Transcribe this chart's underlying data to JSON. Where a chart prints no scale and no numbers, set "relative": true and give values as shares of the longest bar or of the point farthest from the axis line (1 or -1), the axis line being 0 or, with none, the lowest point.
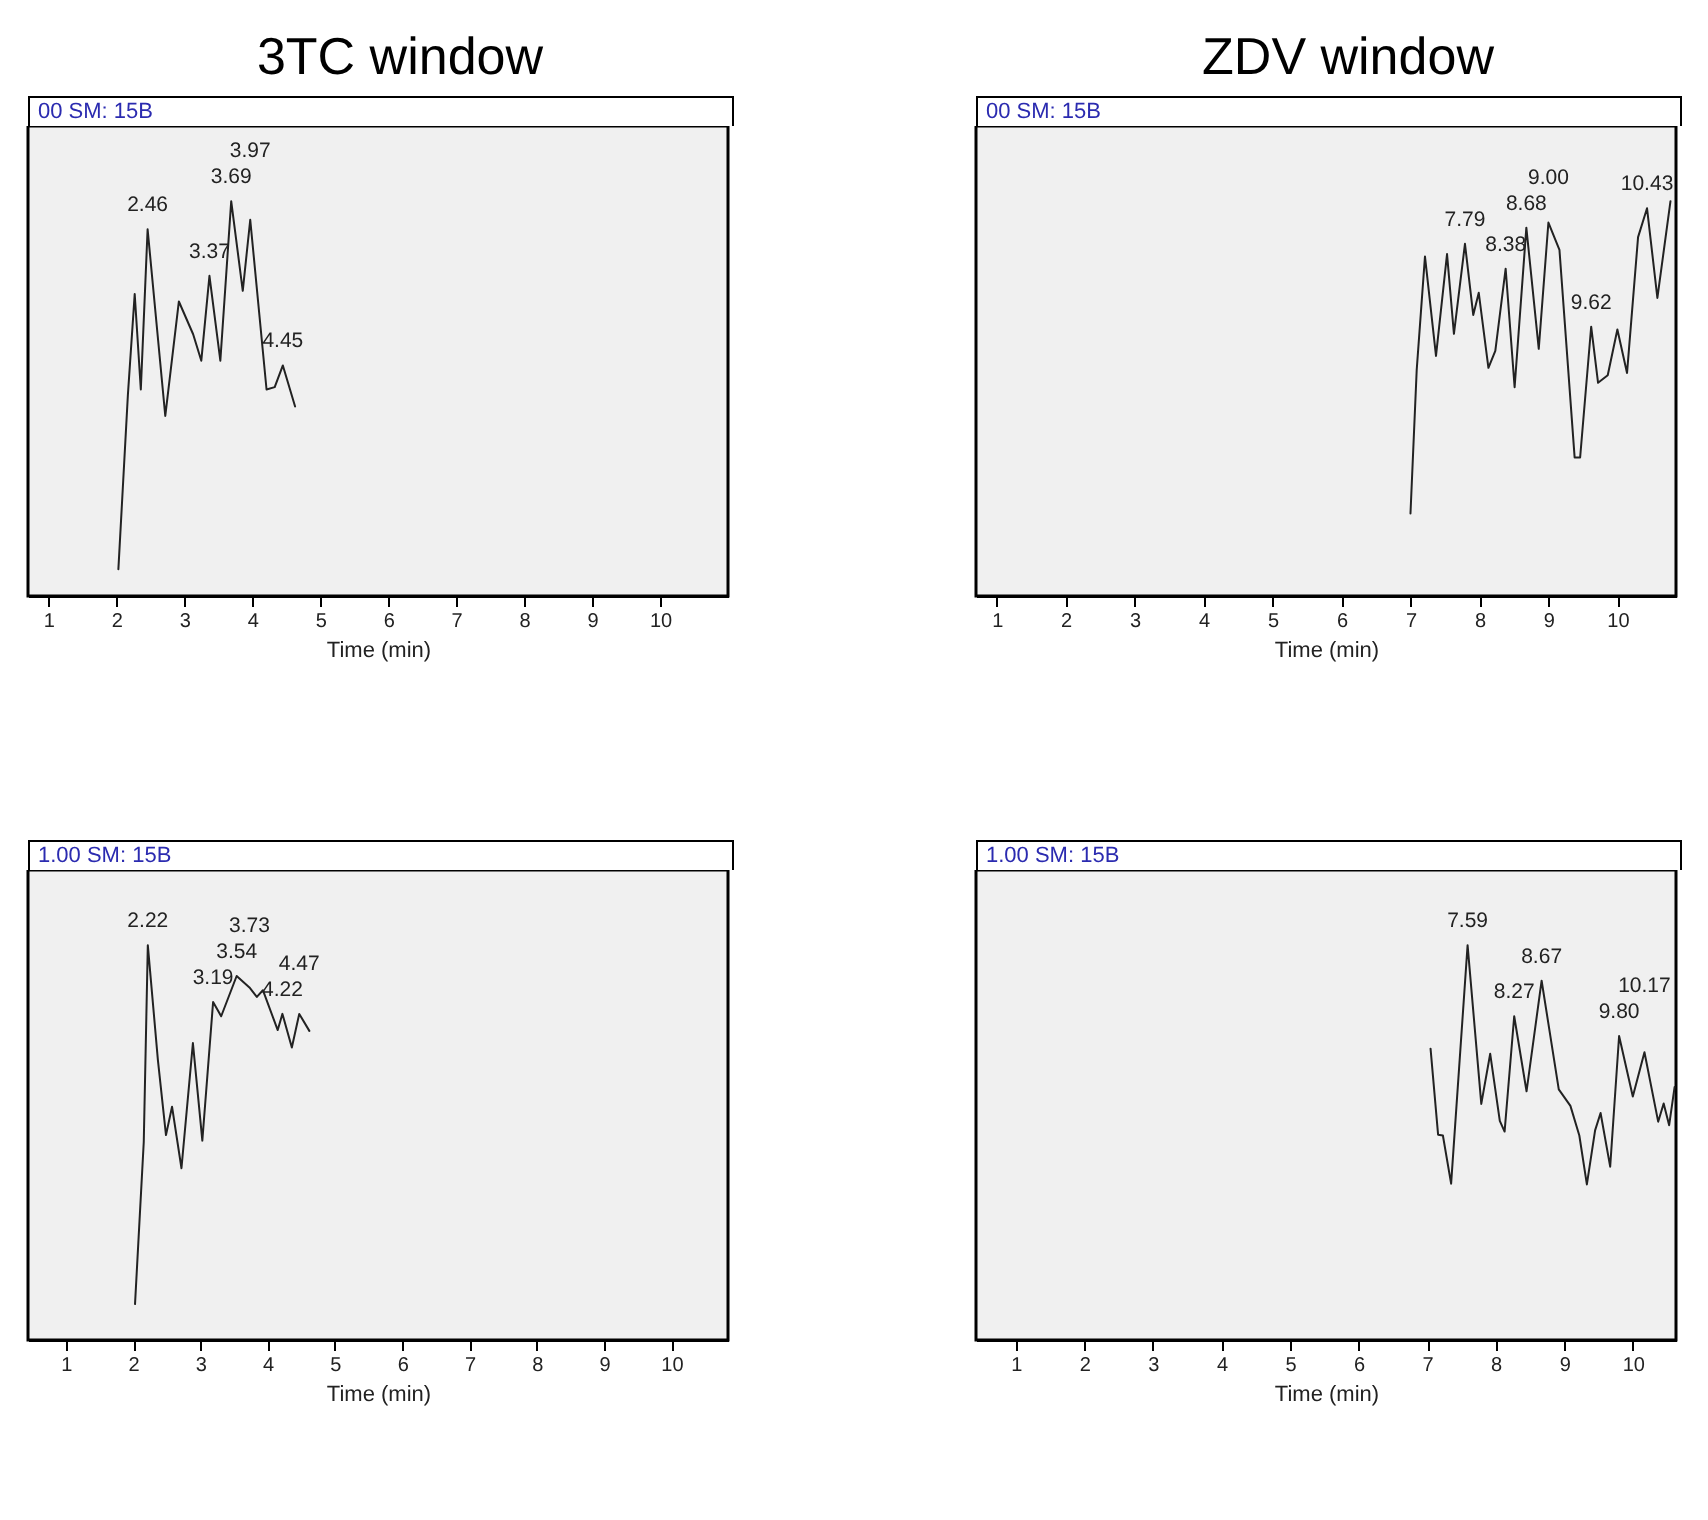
{
  "chart_data": [
    {
      "type": "line",
      "title": "3TC window",
      "subtitle": "00 SM: 15B",
      "xlabel": "Time (min)",
      "relative": true,
      "tick_labels": "x",
      "xlim": [
        0.7,
        11
      ],
      "xticks": [
        1,
        2,
        3,
        4,
        5,
        6,
        7,
        8,
        9,
        10
      ],
      "color": "#222222",
      "x": [
        2.03,
        2.17,
        2.27,
        2.36,
        2.46,
        2.72,
        2.92,
        3.13,
        3.25,
        3.37,
        3.53,
        3.69,
        3.86,
        3.97,
        4.21,
        4.33,
        4.45,
        4.63
      ],
      "values": [
        0.068,
        0.51,
        0.765,
        0.523,
        0.929,
        0.456,
        0.746,
        0.663,
        0.596,
        0.811,
        0.596,
        1,
        0.773,
        0.953,
        0.523,
        0.529,
        0.584,
        0.48
      ],
      "annotations": [
        {
          "text": "2.46",
          "x": 2.46,
          "y": 0.929
        },
        {
          "text": "3.37",
          "x": 3.37,
          "y": 0.811
        },
        {
          "text": "3.69",
          "x": 3.69,
          "y": 1
        },
        {
          "text": "3.97",
          "x": 3.97,
          "y": 0.953
        },
        {
          "text": "4.45",
          "x": 4.45,
          "y": 0.584
        }
      ]
    },
    {
      "type": "line",
      "title": "ZDV window",
      "subtitle": "00 SM: 15B",
      "xlabel": "Time (min)",
      "relative": true,
      "tick_labels": "x",
      "xlim": [
        0.7,
        10.85
      ],
      "xticks": [
        1,
        2,
        3,
        4,
        5,
        6,
        7,
        8,
        9,
        10
      ],
      "color": "#222222",
      "x": [
        7.0,
        7.09,
        7.21,
        7.37,
        7.53,
        7.63,
        7.79,
        7.91,
        7.99,
        8.13,
        8.23,
        8.38,
        8.51,
        8.68,
        8.86,
        9.0,
        9.16,
        9.38,
        9.46,
        9.62,
        9.72,
        9.86,
        10.0,
        10.14,
        10.3,
        10.43,
        10.58,
        10.77
      ],
      "values": [
        0.209,
        0.572,
        0.86,
        0.608,
        0.866,
        0.664,
        0.892,
        0.712,
        0.768,
        0.578,
        0.621,
        0.829,
        0.529,
        0.933,
        0.626,
        0.946,
        0.877,
        0.351,
        0.351,
        0.682,
        0.54,
        0.559,
        0.675,
        0.565,
        0.909,
        0.982,
        0.755,
        1
      ],
      "annotations": [
        {
          "text": "7.79",
          "x": 7.79,
          "y": 0.892
        },
        {
          "text": "8.38",
          "x": 8.38,
          "y": 0.829
        },
        {
          "text": "8.68",
          "x": 8.68,
          "y": 0.933
        },
        {
          "text": "9.00",
          "x": 9.0,
          "y": 0.946
        },
        {
          "text": "9.62",
          "x": 9.62,
          "y": 0.682
        },
        {
          "text": "10.43",
          "x": 10.43,
          "y": 0.982
        }
      ]
    },
    {
      "type": "line",
      "subtitle": "1.00 SM: 15B",
      "xlabel": "Time (min)",
      "relative": true,
      "tick_labels": "x",
      "xlim": [
        0.44,
        10.84
      ],
      "xticks": [
        1,
        2,
        3,
        4,
        5,
        6,
        7,
        8,
        9,
        10
      ],
      "color": "#222222",
      "x": [
        2.03,
        2.16,
        2.22,
        2.37,
        2.49,
        2.58,
        2.72,
        2.89,
        3.03,
        3.19,
        3.31,
        3.54,
        3.73,
        3.84,
        3.93,
        4.15,
        4.22,
        4.36,
        4.47,
        4.62
      ],
      "values": [
        0.091,
        0.502,
        1,
        0.709,
        0.519,
        0.591,
        0.435,
        0.752,
        0.505,
        0.856,
        0.82,
        0.922,
        0.893,
        0.869,
        0.886,
        0.785,
        0.826,
        0.741,
        0.826,
        0.783
      ],
      "annotations": [
        {
          "text": "2.22",
          "x": 2.22,
          "y": 1
        },
        {
          "text": "3.19",
          "x": 3.19,
          "y": 0.856
        },
        {
          "text": "3.54",
          "x": 3.54,
          "y": 0.922
        },
        {
          "text": "3.73",
          "x": 3.73,
          "y": 0.893
        },
        {
          "text": "4.22",
          "x": 4.22,
          "y": 0.826
        },
        {
          "text": "4.47",
          "x": 4.47,
          "y": 0.826
        }
      ]
    },
    {
      "type": "line",
      "subtitle": "1.00 SM: 15B",
      "xlabel": "Time (min)",
      "relative": true,
      "tick_labels": "x",
      "xlim": [
        0.42,
        10.63
      ],
      "xticks": [
        1,
        2,
        3,
        4,
        5,
        6,
        7,
        8,
        9,
        10
      ],
      "color": "#222222",
      "x": [
        7.05,
        7.16,
        7.23,
        7.35,
        7.59,
        7.79,
        7.92,
        8.06,
        8.13,
        8.27,
        8.45,
        8.67,
        8.92,
        9.09,
        9.22,
        9.33,
        9.45,
        9.53,
        9.67,
        9.8,
        10.0,
        10.17,
        10.37,
        10.45,
        10.53,
        10.61
      ],
      "values": [
        0.738,
        0.52,
        0.518,
        0.396,
        1,
        0.598,
        0.725,
        0.555,
        0.528,
        0.82,
        0.63,
        0.91,
        0.635,
        0.593,
        0.518,
        0.394,
        0.531,
        0.575,
        0.439,
        0.77,
        0.617,
        0.729,
        0.553,
        0.599,
        0.544,
        0.641
      ],
      "annotations": [
        {
          "text": "7.59",
          "x": 7.59,
          "y": 1
        },
        {
          "text": "8.27",
          "x": 8.27,
          "y": 0.82
        },
        {
          "text": "8.67",
          "x": 8.67,
          "y": 0.91
        },
        {
          "text": "9.80",
          "x": 9.8,
          "y": 0.77
        },
        {
          "text": "10.17",
          "x": 10.17,
          "y": 0.729
        }
      ]
    }
  ]
}
